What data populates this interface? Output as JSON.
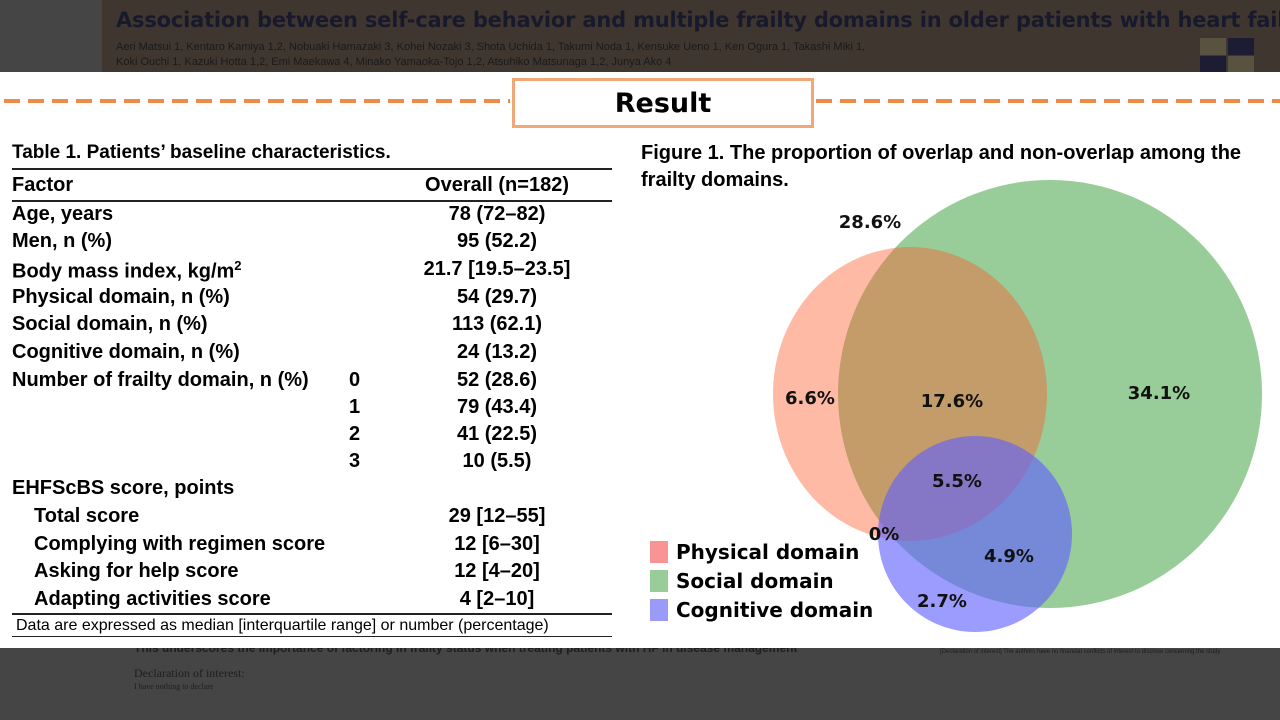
{
  "poster": {
    "title": "Association between self-care behavior and multiple frailty domains in older patients with heart failure",
    "authors_line1": "Aeri Matsui 1, Kentaro Kamiya 1,2, Nobuaki Hamazaki 3, Kohei Nozaki 3, Shota Uchida 1, Takumi Noda 1, Kensuke Ueno 1, Ken Ogura 1, Takashi Miki 1,",
    "authors_line2": "Koki Ouchi 1, Kazuki Hotta 1,2, Emi Maekawa 4, Minako Yamaoka-Tojo 1,2, Atsuhiko Matsunaga 1,2, Junya Ako 4",
    "conclusion_partial": "This underscores the importance of factoring in frailty status when treating patients with HF in disease management",
    "declaration_title": "Declaration of interest:",
    "declaration_text": "I have nothing to declare",
    "coi_text": "[Declaration of interest]  The authors have no financial conflicts of interest to disclose concerning the study"
  },
  "section": {
    "title": "Result"
  },
  "table": {
    "title": "Table 1. Patients’ baseline characteristics.",
    "headers": [
      "Factor",
      "Overall (n=182)"
    ],
    "rows": [
      {
        "factor": "Age, years",
        "cat": "",
        "value": "78 (72–82)"
      },
      {
        "factor": "Men, n (%)",
        "cat": "",
        "value": "95 (52.2)"
      },
      {
        "factor": "Body mass index, kg/m²",
        "cat": "",
        "value": "21.7 [19.5–23.5]"
      },
      {
        "factor": "Physical domain, n (%)",
        "cat": "",
        "value": "54 (29.7)"
      },
      {
        "factor": "Social domain, n (%)",
        "cat": "",
        "value": "113 (62.1)"
      },
      {
        "factor": "Cognitive domain, n (%)",
        "cat": "",
        "value": "24 (13.2)"
      },
      {
        "factor": "Number of frailty domain, n (%)",
        "cat": "0",
        "value": "52 (28.6)"
      },
      {
        "factor": "",
        "cat": "1",
        "value": "79 (43.4)"
      },
      {
        "factor": "",
        "cat": "2",
        "value": "41 (22.5)"
      },
      {
        "factor": "",
        "cat": "3",
        "value": "10 (5.5)"
      },
      {
        "factor": "EHFScBS score, points",
        "cat": "",
        "value": ""
      },
      {
        "factor": "Total score",
        "cat": "",
        "value": "29 [12–55]"
      },
      {
        "factor": "Complying with regimen score",
        "cat": "",
        "value": "12 [6–30]"
      },
      {
        "factor": "Asking for help score",
        "cat": "",
        "value": "12 [4–20]"
      },
      {
        "factor": "Adapting activities score",
        "cat": "",
        "value": "4 [2–10]"
      }
    ],
    "footnote": "Data are expressed as median [interquartile range] or number (percentage)"
  },
  "figure": {
    "title": "Figure 1. The proportion of overlap and non-overlap among the frailty domains.",
    "colors": {
      "physical": "#f99494",
      "social": "#98cc98",
      "cognitive": "#9a9af8",
      "phys_social": "#dfbb95",
      "all": "#c7aec0",
      "soc_cog": "#9bbde0"
    },
    "regions": {
      "none": "28.6%",
      "physical_only": "6.6%",
      "physical_social": "17.6%",
      "social_only": "34.1%",
      "all_three": "5.5%",
      "physical_cognitive": "0%",
      "social_cognitive": "4.9%",
      "cognitive_only": "2.7%"
    },
    "legend": [
      "Physical domain",
      "Social domain",
      "Cognitive domain"
    ]
  }
}
